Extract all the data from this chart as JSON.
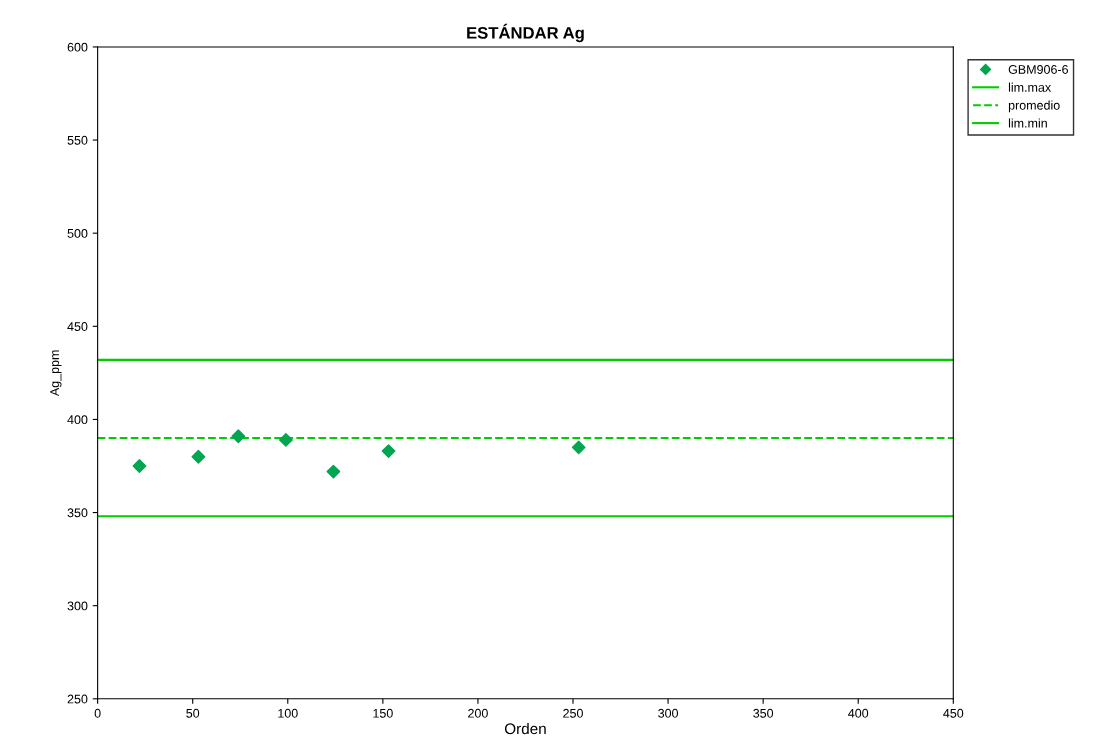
{
  "chart_data": {
    "type": "scatter",
    "title": "ESTÁNDAR Ag",
    "xlabel": "Orden",
    "ylabel": "Ag_ppm",
    "series": [
      {
        "name": "GBM906-6",
        "color": "#00a650",
        "x": [
          22,
          53,
          74,
          99,
          124,
          153,
          253
        ],
        "values": [
          375,
          380,
          391,
          389,
          372,
          383,
          385
        ]
      }
    ],
    "ref_lines": [
      {
        "axis": "y",
        "value": 432,
        "label": "lim.max",
        "color": "#00cc00",
        "line_style": "solid"
      },
      {
        "axis": "y",
        "value": 390,
        "label": "promedio",
        "color": "#00cc00",
        "line_style": "dashed"
      },
      {
        "axis": "y",
        "value": 348,
        "label": "lim.min",
        "color": "#00cc00",
        "line_style": "solid"
      }
    ],
    "xlim": [
      0,
      450
    ],
    "xticks": [
      0,
      50,
      100,
      150,
      200,
      250,
      300,
      350,
      400,
      450
    ],
    "ylim": [
      250,
      600
    ],
    "yticks": [
      250,
      300,
      350,
      400,
      450,
      500,
      550,
      600
    ],
    "grid": false,
    "legend": "top right",
    "marker": "diamond"
  }
}
